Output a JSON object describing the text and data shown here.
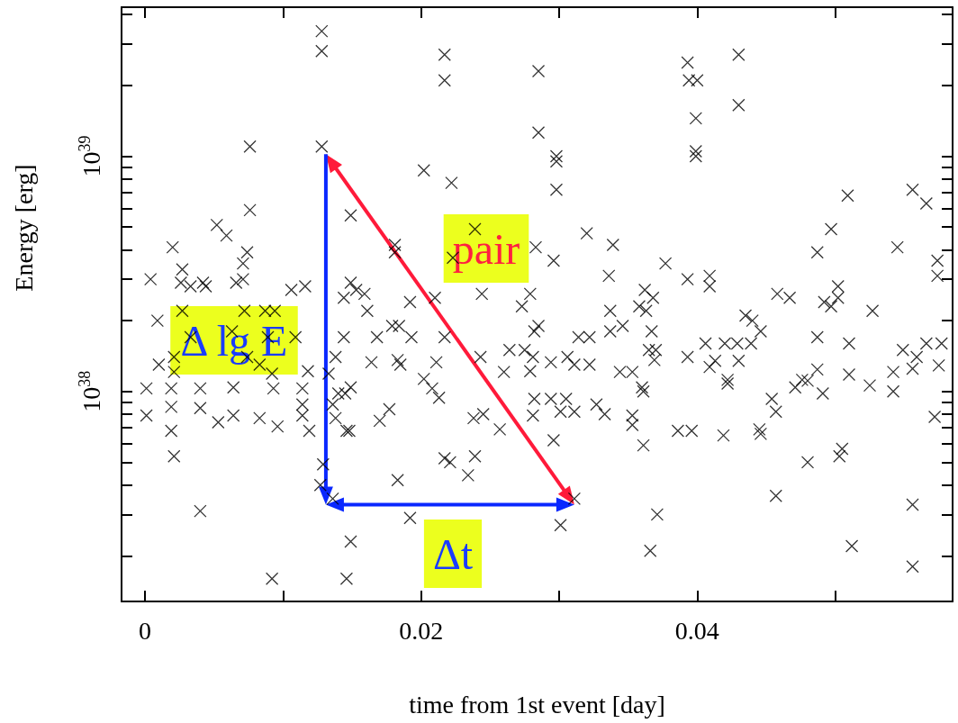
{
  "chart_data": {
    "type": "scatter",
    "xlabel": "time from 1st event [day]",
    "ylabel": "Energy [erg]",
    "log": "y",
    "marker": "cross",
    "grid": false,
    "xlim": [
      -0.0017,
      0.0585
    ],
    "ylim": [
      1.28e+37,
      4.3e+39
    ],
    "xticks": [
      0,
      {
        "value": 0.01,
        "label": null
      },
      0.02,
      {
        "value": 0.03,
        "label": null
      },
      0.04,
      {
        "value": 0.05,
        "label": null
      }
    ],
    "yticks": [
      {
        "value": 2e+37,
        "label": null
      },
      {
        "value": 3e+37,
        "label": null
      },
      {
        "value": 4e+37,
        "label": null
      },
      {
        "value": 5e+37,
        "label": null
      },
      {
        "value": 6e+37,
        "label": null
      },
      {
        "value": 7e+37,
        "label": null
      },
      {
        "value": 8e+37,
        "label": null
      },
      {
        "value": 9e+37,
        "label": null
      },
      {
        "value": 1e+38,
        "label": "10$^{38}$"
      },
      {
        "value": 2e+38,
        "label": null
      },
      {
        "value": 3e+38,
        "label": null
      },
      {
        "value": 4e+38,
        "label": null
      },
      {
        "value": 5e+38,
        "label": null
      },
      {
        "value": 6e+38,
        "label": null
      },
      {
        "value": 7e+38,
        "label": null
      },
      {
        "value": 8e+38,
        "label": null
      },
      {
        "value": 9e+38,
        "label": null
      },
      {
        "value": 1e+39,
        "label": "10$^{39}$"
      },
      {
        "value": 2e+39,
        "label": null
      },
      {
        "value": 3e+39,
        "label": null
      },
      {
        "value": 4e+39,
        "label": null
      }
    ],
    "annotations": [
      "pair",
      "Δ lg E",
      "Δt"
    ],
    "series": [
      {
        "color": "#000000",
        "x": [
          0.0001,
          0.0019,
          0.004,
          0.0064,
          0.0093,
          0.0114,
          0.0001,
          0.0019,
          0.004,
          0.0053,
          0.0064,
          0.0083,
          0.0096,
          0.0114,
          0.0114,
          0.0119,
          0.0019,
          0.0021,
          0.004,
          0.0092,
          0.0146,
          0.0149,
          0.0129,
          0.0127,
          0.0136,
          0.0144,
          0.0168,
          0.0164,
          0.0183,
          0.0138,
          0.0133,
          0.014,
          0.0149,
          0.0145,
          0.0136,
          0.0138,
          0.0146,
          0.0148,
          0.017,
          0.0177,
          0.0183,
          0.0161,
          0.0179,
          0.0009,
          0.0027,
          0.0033,
          0.0021,
          0.001,
          0.0021,
          0.0063,
          0.0072,
          0.0087,
          0.0094,
          0.0089,
          0.0083,
          0.0092,
          0.0109,
          0.0118,
          0.0074,
          0.0128,
          0.0128,
          0.0128,
          0.0076,
          0.0076,
          0.0052,
          0.0059,
          0.0149,
          0.002,
          0.0027,
          0.0074,
          0.0071,
          0.0071,
          0.0066,
          0.0004,
          0.0026,
          0.0033,
          0.0042,
          0.0044,
          0.0106,
          0.0116,
          0.0149,
          0.0153,
          0.0159,
          0.0144,
          0.0181,
          0.0181,
          0.0217,
          0.0217,
          0.0285,
          0.0285,
          0.0298,
          0.0298,
          0.0298,
          0.0202,
          0.0222,
          0.032,
          0.0339,
          0.0296,
          0.0336,
          0.0377,
          0.0239,
          0.0283,
          0.0223,
          0.0244,
          0.0279,
          0.0192,
          0.021,
          0.0362,
          0.0368,
          0.0393,
          0.043,
          0.0394,
          0.04,
          0.043,
          0.0399,
          0.0399,
          0.0399,
          0.0509,
          0.0497,
          0.0487,
          0.0545,
          0.0556,
          0.0566,
          0.0574,
          0.0574,
          0.0393,
          0.0409,
          0.0409,
          0.0458,
          0.0467,
          0.0492,
          0.0502,
          0.0502,
          0.0273,
          0.0337,
          0.0358,
          0.0363,
          0.0184,
          0.0193,
          0.0217,
          0.0285,
          0.0282,
          0.0314,
          0.0322,
          0.0337,
          0.0346,
          0.0367,
          0.0185,
          0.0211,
          0.0243,
          0.0264,
          0.0275,
          0.0281,
          0.026,
          0.0279,
          0.0294,
          0.0306,
          0.0311,
          0.0322,
          0.0344,
          0.0353,
          0.0365,
          0.037,
          0.0369,
          0.0202,
          0.0208,
          0.0213,
          0.0238,
          0.0245,
          0.0257,
          0.0282,
          0.0294,
          0.0305,
          0.0281,
          0.0301,
          0.0311,
          0.0327,
          0.0333,
          0.0353,
          0.0353,
          0.036,
          0.0361,
          0.0296,
          0.0361,
          0.0217,
          0.0221,
          0.0239,
          0.0234,
          0.0192,
          0.0301,
          0.0311,
          0.0371,
          0.0366,
          0.0497,
          0.0527,
          0.0435,
          0.044,
          0.0446,
          0.0406,
          0.042,
          0.0429,
          0.0439,
          0.0393,
          0.0413,
          0.0409,
          0.043,
          0.0422,
          0.0422,
          0.0487,
          0.051,
          0.0487,
          0.051,
          0.0476,
          0.0471,
          0.048,
          0.0491,
          0.0525,
          0.0542,
          0.0542,
          0.0549,
          0.0566,
          0.0577,
          0.0559,
          0.0556,
          0.0575,
          0.0454,
          0.0457,
          0.0386,
          0.0396,
          0.0419,
          0.0445,
          0.0446,
          0.0505,
          0.0503,
          0.048,
          0.0457,
          0.0556,
          0.0512,
          0.0556,
          0.0572
        ],
        "values": [
          1.03e+38,
          1.03e+38,
          1.03e+38,
          1.04e+38,
          1.03e+38,
          1.03e+38,
          7.9e+37,
          8.6e+37,
          8.5e+37,
          7.4e+37,
          7.9e+37,
          7.7e+37,
          7.1e+37,
          8.8e+37,
          7.9e+37,
          6.8e+37,
          6.8e+37,
          5.3e+37,
          3.1e+37,
          1.6e+37,
          1.6e+37,
          2.3e+37,
          4.9e+37,
          4e+37,
          3.5e+37,
          1.7e+38,
          1.7e+38,
          1.33e+38,
          1.36e+38,
          1.4e+38,
          1.19e+38,
          9.8e+37,
          1.04e+38,
          9.8e+37,
          8.8e+37,
          7.7e+37,
          6.8e+37,
          6.8e+37,
          7.5e+37,
          8.4e+37,
          4.2e+37,
          2.2e+38,
          1.9e+38,
          2e+38,
          2.2e+38,
          1.7e+38,
          1.4e+38,
          1.3e+38,
          1.21e+38,
          1.8e+38,
          2.2e+38,
          2.2e+38,
          2.2e+38,
          1.7e+38,
          1.3e+38,
          1.19e+38,
          1.7e+38,
          1.22e+38,
          1.4e+38,
          3.4e+39,
          2.8e+39,
          1.1e+39,
          1.1e+39,
          5.9e+38,
          5.1e+38,
          4.6e+38,
          5.6e+38,
          4.1e+38,
          3.3e+38,
          3.9e+38,
          3.5e+38,
          3e+38,
          2.9e+38,
          3e+38,
          2.9e+38,
          2.8e+38,
          2.9e+38,
          2.8e+38,
          2.7e+38,
          2.8e+38,
          2.9e+38,
          2.7e+38,
          2.6e+38,
          2.5e+38,
          4.2e+38,
          3.9e+38,
          2.7e+39,
          2.1e+39,
          2.3e+39,
          1.26e+39,
          1e+39,
          9.5e+38,
          7.2e+38,
          8.7e+38,
          7.7e+38,
          4.7e+38,
          4.2e+38,
          3.6e+38,
          3.1e+38,
          3.5e+38,
          4.9e+38,
          4.1e+38,
          3.7e+38,
          2.6e+38,
          2.6e+38,
          2.4e+38,
          2.5e+38,
          2.7e+38,
          2.5e+38,
          2.5e+39,
          2.7e+39,
          2.1e+39,
          2.1e+39,
          1.65e+39,
          1.45e+39,
          1.05e+39,
          1e+39,
          6.8e+38,
          4.9e+38,
          3.9e+38,
          4.1e+38,
          7.2e+38,
          6.3e+38,
          3.6e+38,
          3.1e+38,
          3e+38,
          3.1e+38,
          2.8e+38,
          2.6e+38,
          2.5e+38,
          2.4e+38,
          2.8e+38,
          2.5e+38,
          2.3e+38,
          2.2e+38,
          2.3e+38,
          2.2e+38,
          1.9e+38,
          1.7e+38,
          1.7e+38,
          1.9e+38,
          1.8e+38,
          1.7e+38,
          1.7e+38,
          1.8e+38,
          1.9e+38,
          1.8e+38,
          1.3e+38,
          1.33e+38,
          1.4e+38,
          1.5e+38,
          1.5e+38,
          1.4e+38,
          1.21e+38,
          1.22e+38,
          1.33e+38,
          1.4e+38,
          1.3e+38,
          1.3e+38,
          1.21e+38,
          1.21e+38,
          1.5e+38,
          1.5e+38,
          1.36e+38,
          1.13e+38,
          1.03e+38,
          9.4e+37,
          7.7e+37,
          8e+37,
          6.9e+37,
          9.3e+37,
          9.3e+37,
          9.3e+37,
          7.9e+37,
          8.2e+37,
          8.2e+37,
          8.8e+37,
          8e+37,
          7.9e+37,
          7.2e+37,
          1.04e+38,
          1e+38,
          6.2e+37,
          5.9e+37,
          5.2e+37,
          5e+37,
          5.3e+37,
          4.4e+37,
          2.9e+37,
          2.7e+37,
          3.5e+37,
          3e+37,
          2.1e+37,
          2.3e+38,
          2.2e+38,
          2.1e+38,
          2e+38,
          1.8e+38,
          1.6e+38,
          1.6e+38,
          1.6e+38,
          1.6e+38,
          1.4e+38,
          1.35e+38,
          1.27e+38,
          1.35e+38,
          1.12e+38,
          1.08e+38,
          1.7e+38,
          1.6e+38,
          1.24e+38,
          1.18e+38,
          1.12e+38,
          1.04e+38,
          1.11e+38,
          9.8e+37,
          1.06e+38,
          1.21e+38,
          1e+38,
          1.5e+38,
          1.6e+38,
          1.6e+38,
          1.4e+38,
          1.25e+38,
          1.29e+38,
          9.3e+37,
          8.2e+37,
          6.8e+37,
          6.8e+37,
          6.5e+37,
          6.9e+37,
          6.6e+37,
          5.7e+37,
          5.3e+37,
          5e+37,
          3.6e+37,
          3.3e+37,
          2.2e+37,
          1.8e+37,
          7.8e+37
        ]
      }
    ]
  }
}
